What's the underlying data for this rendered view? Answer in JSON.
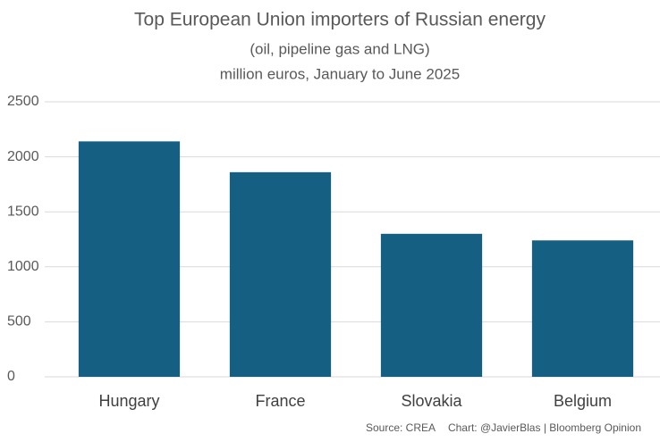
{
  "chart_data": {
    "type": "bar",
    "title": "Top European Union importers of Russian energy",
    "subtitle": [
      "(oil, pipeline gas and LNG)",
      "million euros, January to June 2025"
    ],
    "categories": [
      "Hungary",
      "France",
      "Slovakia",
      "Belgium"
    ],
    "values": [
      2140,
      1860,
      1300,
      1240
    ],
    "color": "#155f82",
    "ylim": [
      0,
      2500
    ],
    "yticks": [
      0,
      500,
      1000,
      1500,
      2000,
      2500
    ],
    "grid": true,
    "source": "Source: CREA",
    "credit": "Chart: @JavierBlas | Bloomberg Opinion"
  }
}
